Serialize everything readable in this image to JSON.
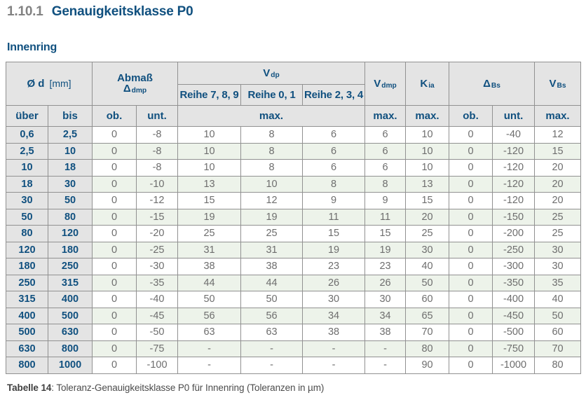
{
  "page": {
    "section_number": "1.10.1",
    "title": "Genauigkeitsklasse P0",
    "subtitle": "Innenring",
    "caption": {
      "label": "Tabelle 14",
      "text": ": Toleranz-Genauigkeitsklasse P0 für Innenring (Toleranzen in µm)"
    }
  },
  "colors": {
    "accent_blue": "#10507F",
    "header_bg": "#E4E4E4",
    "stripe_green": "#EDF3EA",
    "stripe_white": "#FFFFFF",
    "data_text_gray": "#6E6E6E",
    "border_gray": "#919191",
    "section_number_gray": "#828282"
  },
  "table": {
    "header": {
      "diameter": {
        "symbol": "Ø d",
        "unit": "[mm]"
      },
      "abmass": {
        "label": "Abmaß",
        "symbol": "Δ",
        "subscript": "dmp"
      },
      "vdp": {
        "symbol": "V",
        "subscript": "dp"
      },
      "reihe_columns": [
        "Reihe 7, 8, 9",
        "Reihe 0, 1",
        "Reihe 2, 3, 4"
      ],
      "vdmp": {
        "symbol": "V",
        "subscript": "dmp"
      },
      "kia": {
        "symbol": "K",
        "subscript": "ia"
      },
      "delta_bs": {
        "symbol": "Δ",
        "subscript": "Bs"
      },
      "vbs": {
        "symbol": "V",
        "subscript": "Bs"
      },
      "subheader": {
        "ueber": "über",
        "bis": "bis",
        "ob": "ob.",
        "unt": "unt.",
        "max": "max."
      }
    },
    "rows": [
      [
        "0,6",
        "2,5",
        "0",
        "-8",
        "10",
        "8",
        "6",
        "6",
        "10",
        "0",
        "-40",
        "12"
      ],
      [
        "2,5",
        "10",
        "0",
        "-8",
        "10",
        "8",
        "6",
        "6",
        "10",
        "0",
        "-120",
        "15"
      ],
      [
        "10",
        "18",
        "0",
        "-8",
        "10",
        "8",
        "6",
        "6",
        "10",
        "0",
        "-120",
        "20"
      ],
      [
        "18",
        "30",
        "0",
        "-10",
        "13",
        "10",
        "8",
        "8",
        "13",
        "0",
        "-120",
        "20"
      ],
      [
        "30",
        "50",
        "0",
        "-12",
        "15",
        "12",
        "9",
        "9",
        "15",
        "0",
        "-120",
        "20"
      ],
      [
        "50",
        "80",
        "0",
        "-15",
        "19",
        "19",
        "11",
        "11",
        "20",
        "0",
        "-150",
        "25"
      ],
      [
        "80",
        "120",
        "0",
        "-20",
        "25",
        "25",
        "15",
        "15",
        "25",
        "0",
        "-200",
        "25"
      ],
      [
        "120",
        "180",
        "0",
        "-25",
        "31",
        "31",
        "19",
        "19",
        "30",
        "0",
        "-250",
        "30"
      ],
      [
        "180",
        "250",
        "0",
        "-30",
        "38",
        "38",
        "23",
        "23",
        "40",
        "0",
        "-300",
        "30"
      ],
      [
        "250",
        "315",
        "0",
        "-35",
        "44",
        "44",
        "26",
        "26",
        "50",
        "0",
        "-350",
        "35"
      ],
      [
        "315",
        "400",
        "0",
        "-40",
        "50",
        "50",
        "30",
        "30",
        "60",
        "0",
        "-400",
        "40"
      ],
      [
        "400",
        "500",
        "0",
        "-45",
        "56",
        "56",
        "34",
        "34",
        "65",
        "0",
        "-450",
        "50"
      ],
      [
        "500",
        "630",
        "0",
        "-50",
        "63",
        "63",
        "38",
        "38",
        "70",
        "0",
        "-500",
        "60"
      ],
      [
        "630",
        "800",
        "0",
        "-75",
        "-",
        "-",
        "-",
        "-",
        "80",
        "0",
        "-750",
        "70"
      ],
      [
        "800",
        "1000",
        "0",
        "-100",
        "-",
        "-",
        "-",
        "-",
        "90",
        "0",
        "-1000",
        "80"
      ]
    ]
  }
}
